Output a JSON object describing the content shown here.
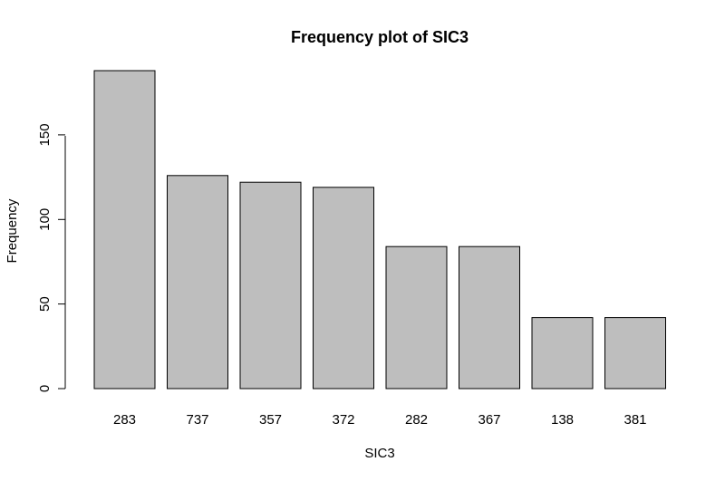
{
  "chart_data": {
    "type": "bar",
    "title": "Frequency plot of SIC3",
    "xlabel": "SIC3",
    "ylabel": "Frequency",
    "categories": [
      "283",
      "737",
      "357",
      "372",
      "282",
      "367",
      "138",
      "381"
    ],
    "values": [
      188,
      126,
      122,
      119,
      84,
      84,
      42,
      42
    ],
    "ylim": [
      0,
      188
    ],
    "yticks": [
      0,
      50,
      100,
      150
    ],
    "grid": false,
    "legend": "none",
    "colors": {
      "bar_fill": "#bebebe",
      "bar_stroke": "#000000"
    }
  }
}
